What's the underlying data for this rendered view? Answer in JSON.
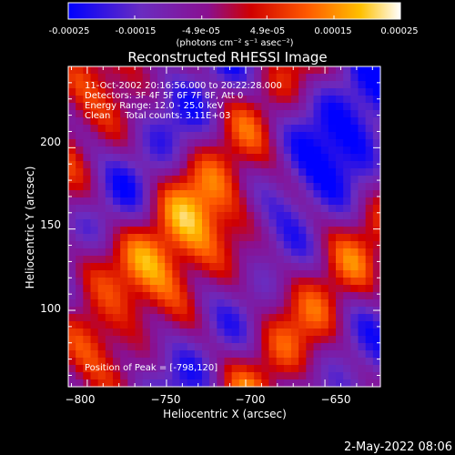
{
  "colorbar": {
    "tick_labels": [
      "-0.00025",
      "-0.00015",
      "-4.9e-05",
      "4.9e-05",
      "0.00015",
      "0.00025"
    ],
    "unit_label": "(photons cm⁻² s⁻¹ asec⁻²)",
    "range": [
      -0.00025,
      0.00025
    ],
    "colors": [
      "#0000ff",
      "#5a2aa0",
      "#8a1090",
      "#cc0000",
      "#ff5a00",
      "#ffc000",
      "#ffffff"
    ]
  },
  "chart_data": {
    "type": "heatmap",
    "title": "Reconstructed RHESSI Image",
    "xlabel": "Heliocentric X (arcsec)",
    "ylabel": "Heliocentric Y (arcsec)",
    "xlim": [
      -812,
      -615
    ],
    "ylim": [
      53,
      250
    ],
    "x_ticks": [
      -800,
      -750,
      -700,
      -650
    ],
    "y_ticks": [
      100,
      150,
      200
    ],
    "x_tick_labels": [
      "−800",
      "−750",
      "−700",
      "−650"
    ],
    "y_tick_labels": [
      "100",
      "150",
      "200"
    ],
    "annotations": [
      "11-Oct-2002 20:16:56.000 to 20:22:28.000",
      "Detectors: 3F 4F 5F 6F 7F 8F, Att 0",
      "Energy Range: 12.0 - 25.0 keV",
      "Clean     Total counts: 3.11E+03"
    ],
    "peak_label": "Position of Peak = [-798,120]",
    "peak": [
      -798,
      120
    ]
  },
  "footer": {
    "timestamp": "2-May-2022 08:06"
  }
}
